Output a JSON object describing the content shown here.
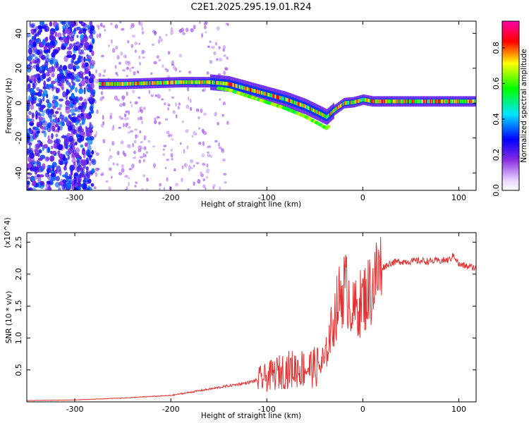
{
  "chart_data": [
    {
      "type": "heatmap",
      "title": "C2E1.2025.295.19.01.R24",
      "xlabel": "Height of straight line (km)",
      "ylabel": "Frequency (Hz)",
      "xlim": [
        -350,
        118
      ],
      "ylim": [
        -50,
        47
      ],
      "xticks": [
        -300,
        -200,
        -100,
        0,
        100
      ],
      "yticks": [
        -40,
        -20,
        0,
        20,
        40
      ],
      "colorbar": {
        "label": "Normalized spectral amplitude",
        "range": [
          0.0,
          0.95
        ],
        "ticks": [
          "0.0",
          "0.2",
          "0.4",
          "0.6",
          "0.8"
        ],
        "colormap": [
          "#ffffff",
          "#8a2be2",
          "#0000ff",
          "#00e5ff",
          "#00ff00",
          "#ffff00",
          "#ff0000",
          "#ff00aa"
        ]
      },
      "ridge": {
        "x": [
          -350,
          -330,
          -300,
          -280,
          -275,
          -250,
          -220,
          -190,
          -160,
          -140,
          -120,
          -100,
          -80,
          -60,
          -45,
          -38,
          -30,
          -20,
          -10,
          0,
          10,
          30,
          60,
          90,
          118
        ],
        "frequency": [
          10,
          10,
          10,
          10,
          11,
          11,
          11.5,
          12,
          12,
          11,
          8,
          5,
          2,
          -2,
          -6,
          -8,
          -4,
          0,
          0.5,
          2,
          1,
          1,
          1,
          1,
          1
        ]
      }
    },
    {
      "type": "line",
      "xlabel": "Height of straight line (km)",
      "ylabel": "SNR (10 * v/v)",
      "y_multiplier": "(x10^4)",
      "xlim": [
        -350,
        118
      ],
      "ylim": [
        0,
        26500
      ],
      "xticks": [
        -300,
        -200,
        -100,
        0,
        100
      ],
      "yticks": [
        "0.5",
        "1.0",
        "1.5",
        "2.0",
        "2.5"
      ],
      "series": [
        {
          "color": "#e63232",
          "x": [
            -350,
            -300,
            -250,
            -200,
            -180,
            -160,
            -140,
            -120,
            -100,
            -90,
            -80,
            -70,
            -60,
            -50,
            -40,
            -35,
            -30,
            -25,
            -20,
            -15,
            -10,
            -5,
            0,
            5,
            10,
            15,
            20,
            30,
            40,
            50,
            60,
            70,
            80,
            90,
            95,
            100,
            110,
            118
          ],
          "y": [
            200,
            300,
            600,
            1000,
            1500,
            2000,
            2500,
            3000,
            3800,
            4500,
            5000,
            5200,
            5300,
            5400,
            6000,
            10000,
            13000,
            16000,
            18000,
            17000,
            14000,
            15000,
            16000,
            17000,
            18000,
            20000,
            21000,
            21800,
            22000,
            22000,
            22100,
            22000,
            22100,
            22200,
            23000,
            21500,
            21200,
            21000
          ]
        }
      ]
    }
  ],
  "colors": {
    "snr_line": "#e63232",
    "frame": "#000000"
  }
}
